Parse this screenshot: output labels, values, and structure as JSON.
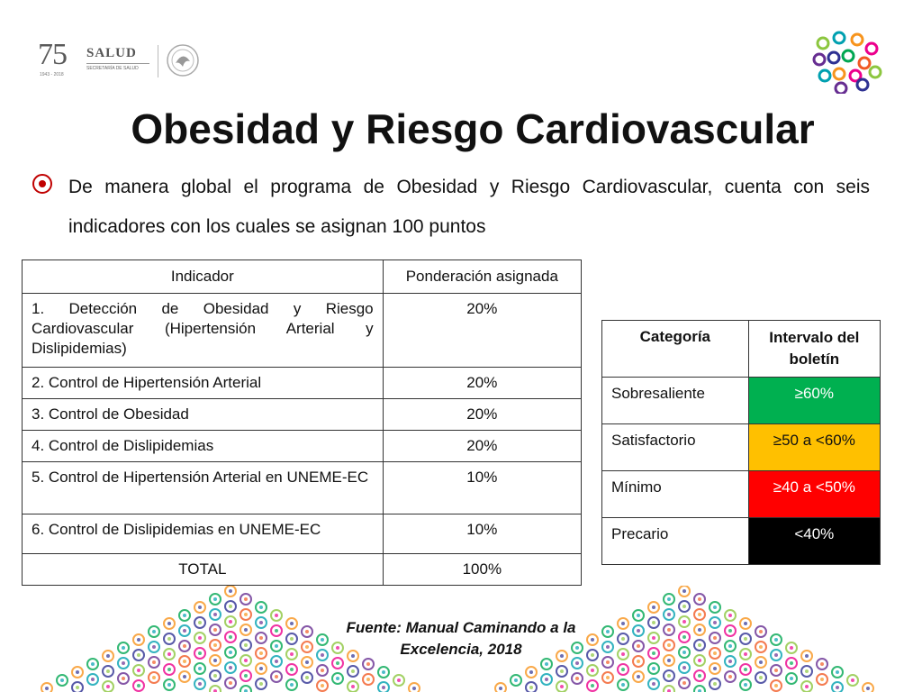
{
  "header": {
    "logo_75_number": "75",
    "logo_75_caption": "AÑOS",
    "logo_75_years": "1943 - 2018",
    "logo_salud_name": "SALUD",
    "logo_salud_sub": "SECRETARÍA DE SALUD"
  },
  "slide": {
    "title": "Obesidad y Riesgo Cardiovascular",
    "intro": "De manera global el programa de Obesidad y Riesgo Cardiovascular, cuenta con seis indicadores con los cuales se asignan 100 puntos"
  },
  "indicators_table": {
    "headers": [
      "Indicador",
      "Ponderación asignada"
    ],
    "rows": [
      {
        "indicator": "1. Detección de Obesidad y Riesgo Cardiovascular (Hipertensión Arterial y Dislipidemias)",
        "weight": "20%"
      },
      {
        "indicator": "2. Control de Hipertensión Arterial",
        "weight": "20%"
      },
      {
        "indicator": "3. Control de Obesidad",
        "weight": "20%"
      },
      {
        "indicator": "4. Control de Dislipidemias",
        "weight": "20%"
      },
      {
        "indicator": "5. Control de Hipertensión Arterial en UNEME-EC",
        "weight": "10%"
      },
      {
        "indicator": "6. Control de Dislipidemias en UNEME-EC",
        "weight": "10%"
      },
      {
        "indicator": "TOTAL",
        "weight": "100%"
      }
    ]
  },
  "category_table": {
    "headers": [
      "Categoría",
      "Intervalo del boletín"
    ],
    "rows": [
      {
        "category": "Sobresaliente",
        "range": "≥60%",
        "bg": "#00b050",
        "fg": "#ffffff"
      },
      {
        "category": "Satisfactorio",
        "range": "≥50 a <60%",
        "bg": "#ffc000",
        "fg": "#111111"
      },
      {
        "category": "Mínimo",
        "range": "≥40 a <50%",
        "bg": "#ff0000",
        "fg": "#ffffff"
      },
      {
        "category": "Precario",
        "range": "<40%",
        "bg": "#000000",
        "fg": "#ffffff"
      }
    ]
  },
  "footer": {
    "source": "Fuente: Manual Caminando a la Excelencia, 2018"
  },
  "colors": {
    "ring_palette": [
      "#8cc63f",
      "#00a0b0",
      "#f7941d",
      "#ec008c",
      "#662d91",
      "#2e3192",
      "#00a651",
      "#f15a24"
    ]
  }
}
